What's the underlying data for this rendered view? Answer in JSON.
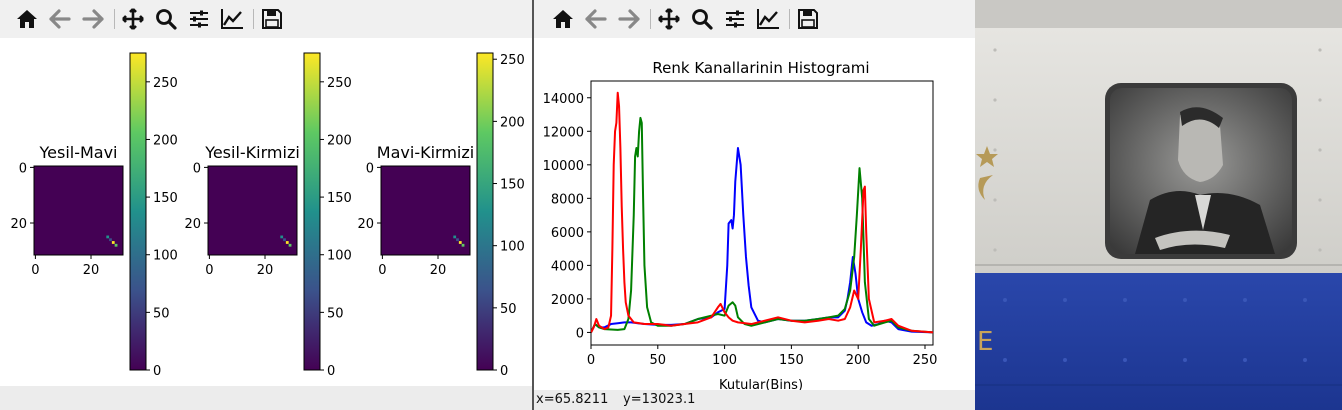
{
  "toolbar": {
    "icons": [
      "home-icon",
      "back-icon",
      "forward-icon",
      "pan-icon",
      "zoom-icon",
      "configure-subplots-icon",
      "edit-axes-icon",
      "save-icon"
    ]
  },
  "left_window": {
    "subplots": [
      {
        "title": "Yesil-Mavi",
        "x_ticks": [
          "0",
          "20"
        ],
        "y_ticks": [
          "0",
          "20"
        ],
        "colorbar_ticks": [
          "0",
          "50",
          "100",
          "150",
          "200",
          "250"
        ],
        "colorbar_max": 275
      },
      {
        "title": "Yesil-Kirmizi",
        "x_ticks": [
          "0",
          "20"
        ],
        "y_ticks": [
          "0",
          "20"
        ],
        "colorbar_ticks": [
          "0",
          "50",
          "100",
          "150",
          "200",
          "250"
        ],
        "colorbar_max": 275
      },
      {
        "title": "Mavi-Kirmizi",
        "x_ticks": [
          "0",
          "20"
        ],
        "y_ticks": [
          "0",
          "20"
        ],
        "colorbar_ticks": [
          "0",
          "50",
          "100",
          "150",
          "200",
          "250"
        ],
        "colorbar_max": 255
      }
    ],
    "colormap": [
      "#440154",
      "#3b528b",
      "#21918c",
      "#5ec962",
      "#fde725"
    ]
  },
  "right_window": {
    "status": {
      "x": "x=65.8211",
      "y": "y=13023.1"
    }
  },
  "chart_data": {
    "type": "line",
    "title": "Renk Kanallarinin Histogrami",
    "xlabel": "Kutular(Bins)",
    "ylabel": "",
    "xlim": [
      0,
      256
    ],
    "ylim": [
      -750,
      15000
    ],
    "x_ticks": [
      0,
      50,
      100,
      150,
      200,
      250
    ],
    "y_ticks": [
      0,
      2000,
      4000,
      6000,
      8000,
      10000,
      12000,
      14000
    ],
    "grid": false,
    "series": [
      {
        "color": "#0000ff",
        "points": [
          [
            0,
            0
          ],
          [
            3,
            500
          ],
          [
            6,
            300
          ],
          [
            10,
            300
          ],
          [
            15,
            500
          ],
          [
            20,
            550
          ],
          [
            25,
            600
          ],
          [
            30,
            600
          ],
          [
            35,
            550
          ],
          [
            40,
            500
          ],
          [
            50,
            450
          ],
          [
            60,
            450
          ],
          [
            70,
            500
          ],
          [
            80,
            800
          ],
          [
            90,
            900
          ],
          [
            95,
            1200
          ],
          [
            100,
            1400
          ],
          [
            102,
            4000
          ],
          [
            103,
            6500
          ],
          [
            105,
            6700
          ],
          [
            106,
            6200
          ],
          [
            107,
            7000
          ],
          [
            108,
            9000
          ],
          [
            110,
            11000
          ],
          [
            112,
            10000
          ],
          [
            114,
            7000
          ],
          [
            116,
            4500
          ],
          [
            118,
            2800
          ],
          [
            120,
            1500
          ],
          [
            125,
            700
          ],
          [
            130,
            600
          ],
          [
            140,
            800
          ],
          [
            150,
            700
          ],
          [
            160,
            700
          ],
          [
            170,
            800
          ],
          [
            178,
            900
          ],
          [
            185,
            900
          ],
          [
            190,
            1300
          ],
          [
            192,
            2000
          ],
          [
            194,
            3000
          ],
          [
            196,
            4500
          ],
          [
            198,
            3500
          ],
          [
            200,
            2000
          ],
          [
            203,
            1200
          ],
          [
            206,
            600
          ],
          [
            210,
            400
          ],
          [
            215,
            500
          ],
          [
            220,
            700
          ],
          [
            225,
            600
          ],
          [
            230,
            200
          ],
          [
            240,
            50
          ],
          [
            256,
            0
          ]
        ]
      },
      {
        "color": "#008000",
        "points": [
          [
            0,
            0
          ],
          [
            3,
            500
          ],
          [
            6,
            300
          ],
          [
            10,
            200
          ],
          [
            20,
            150
          ],
          [
            25,
            200
          ],
          [
            28,
            800
          ],
          [
            30,
            2500
          ],
          [
            32,
            7000
          ],
          [
            33,
            10500
          ],
          [
            34,
            11000
          ],
          [
            35,
            10500
          ],
          [
            36,
            12000
          ],
          [
            37,
            12800
          ],
          [
            38,
            12500
          ],
          [
            39,
            8000
          ],
          [
            40,
            4000
          ],
          [
            42,
            1500
          ],
          [
            45,
            600
          ],
          [
            50,
            400
          ],
          [
            60,
            400
          ],
          [
            70,
            500
          ],
          [
            80,
            800
          ],
          [
            90,
            1000
          ],
          [
            95,
            1100
          ],
          [
            100,
            1000
          ],
          [
            103,
            1600
          ],
          [
            106,
            1800
          ],
          [
            108,
            1600
          ],
          [
            110,
            900
          ],
          [
            115,
            500
          ],
          [
            120,
            400
          ],
          [
            130,
            600
          ],
          [
            140,
            800
          ],
          [
            150,
            700
          ],
          [
            160,
            700
          ],
          [
            170,
            800
          ],
          [
            178,
            900
          ],
          [
            185,
            1000
          ],
          [
            190,
            1400
          ],
          [
            194,
            2500
          ],
          [
            197,
            4500
          ],
          [
            199,
            7000
          ],
          [
            201,
            9800
          ],
          [
            203,
            8000
          ],
          [
            205,
            3000
          ],
          [
            208,
            800
          ],
          [
            212,
            400
          ],
          [
            220,
            600
          ],
          [
            225,
            700
          ],
          [
            230,
            300
          ],
          [
            240,
            100
          ],
          [
            256,
            0
          ]
        ]
      },
      {
        "color": "#ff0000",
        "points": [
          [
            0,
            0
          ],
          [
            2,
            300
          ],
          [
            4,
            800
          ],
          [
            6,
            400
          ],
          [
            10,
            200
          ],
          [
            13,
            300
          ],
          [
            15,
            1000
          ],
          [
            16,
            5000
          ],
          [
            17,
            10000
          ],
          [
            18,
            12000
          ],
          [
            19,
            12500
          ],
          [
            20,
            14300
          ],
          [
            21,
            13500
          ],
          [
            22,
            11000
          ],
          [
            23,
            7500
          ],
          [
            24,
            5000
          ],
          [
            25,
            3000
          ],
          [
            26,
            1800
          ],
          [
            28,
            1000
          ],
          [
            32,
            600
          ],
          [
            40,
            500
          ],
          [
            50,
            500
          ],
          [
            60,
            400
          ],
          [
            70,
            500
          ],
          [
            80,
            600
          ],
          [
            90,
            900
          ],
          [
            95,
            1500
          ],
          [
            97,
            1700
          ],
          [
            100,
            1200
          ],
          [
            103,
            900
          ],
          [
            106,
            700
          ],
          [
            110,
            600
          ],
          [
            120,
            500
          ],
          [
            130,
            700
          ],
          [
            140,
            900
          ],
          [
            150,
            700
          ],
          [
            160,
            600
          ],
          [
            170,
            700
          ],
          [
            178,
            800
          ],
          [
            185,
            700
          ],
          [
            190,
            800
          ],
          [
            194,
            1500
          ],
          [
            197,
            2500
          ],
          [
            200,
            2000
          ],
          [
            202,
            5000
          ],
          [
            204,
            8500
          ],
          [
            205,
            8700
          ],
          [
            206,
            6000
          ],
          [
            208,
            2000
          ],
          [
            212,
            600
          ],
          [
            220,
            700
          ],
          [
            225,
            800
          ],
          [
            230,
            400
          ],
          [
            240,
            100
          ],
          [
            256,
            0
          ]
        ]
      }
    ]
  },
  "photo": {
    "description_colors": {
      "wall": "#dcdbd6",
      "panel": "#223fa0",
      "window_frame": "#3a3a3a"
    }
  }
}
